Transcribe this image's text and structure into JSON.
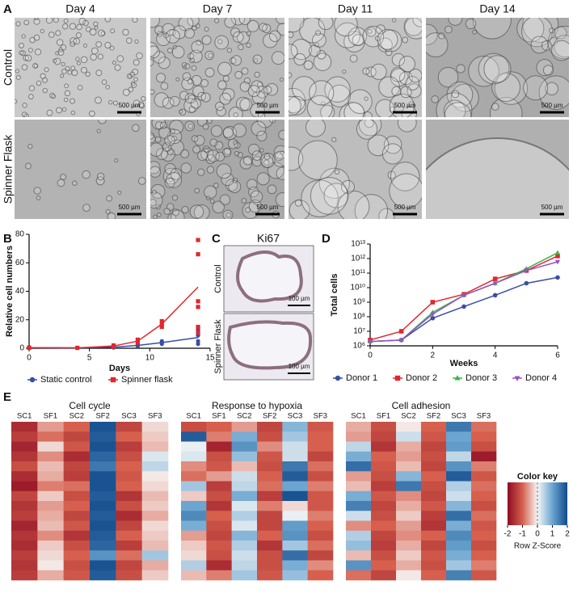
{
  "panel_labels": [
    "A",
    "B",
    "C",
    "D",
    "E"
  ],
  "panel_a": {
    "columns": [
      "Day 4",
      "Day 7",
      "Day 11",
      "Day 14"
    ],
    "rows": [
      "Control",
      "Spinner Flask"
    ],
    "scale_bar": "500 µm"
  },
  "panel_c": {
    "title": "Ki67",
    "rows": [
      "Control",
      "Spinner Flask"
    ],
    "scale_bar": "100 µm"
  },
  "chart_data": [
    {
      "type": "line",
      "xlabel": "Days",
      "ylabel": "Relative cell numbers",
      "x": [
        0,
        4,
        7,
        9,
        11,
        14
      ],
      "xlim": [
        0,
        15
      ],
      "xticks": [
        0,
        5,
        10,
        15
      ],
      "ylim": [
        0,
        80
      ],
      "yticks": [
        0,
        20,
        40,
        60,
        80
      ],
      "log_y": false,
      "series": [
        {
          "name": "Static control",
          "color": "#3a4ea6",
          "marker": "circle",
          "values": [
            0.4,
            0.2,
            0.8,
            2,
            4,
            7.5
          ],
          "points": {
            "x": [
              0,
              0,
              4,
              7,
              7,
              9,
              9,
              11,
              11,
              11,
              14,
              14,
              14,
              14
            ],
            "y": [
              0.5,
              0.3,
              0.2,
              0.5,
              1.0,
              1.5,
              2.5,
              3,
              4,
              5,
              13,
              9,
              5,
              3
            ]
          }
        },
        {
          "name": "Spinner flask",
          "color": "#e3262d",
          "marker": "square",
          "values": [
            0.4,
            0.3,
            1.6,
            5,
            17,
            43
          ],
          "points": {
            "x": [
              0,
              0,
              4,
              7,
              7,
              9,
              9,
              11,
              11,
              11,
              14,
              14,
              14,
              14,
              14,
              14
            ],
            "y": [
              0.5,
              0.3,
              0.3,
              1.2,
              2,
              4,
              6,
              15,
              17,
              19,
              76,
              66,
              33,
              29,
              15,
              11
            ]
          }
        }
      ]
    },
    {
      "type": "line",
      "xlabel": "Weeks",
      "ylabel": "Total cells",
      "x": [
        0,
        1,
        2,
        3,
        4,
        5,
        6
      ],
      "xlim": [
        0,
        6
      ],
      "xticks": [
        0,
        2,
        4,
        6
      ],
      "ylim": [
        1000000,
        10000000000000
      ],
      "log_y": true,
      "yticks": [
        {
          "value": 1000000,
          "label": "10⁶"
        },
        {
          "value": 10000000,
          "label": "10⁷"
        },
        {
          "value": 100000000,
          "label": "10⁸"
        },
        {
          "value": 1000000000,
          "label": "10⁹"
        },
        {
          "value": 10000000000,
          "label": "10¹⁰"
        },
        {
          "value": 100000000000,
          "label": "10¹¹"
        },
        {
          "value": 1000000000000,
          "label": "10¹²"
        },
        {
          "value": 10000000000000,
          "label": "10¹³"
        }
      ],
      "series": [
        {
          "name": "Donor 1",
          "color": "#3a4ea6",
          "marker": "circle",
          "values": [
            2000000,
            2500000,
            80000000,
            500000000,
            3000000000,
            20000000000,
            50000000000
          ]
        },
        {
          "name": "Donor 2",
          "color": "#e3262d",
          "marker": "square",
          "values": [
            2500000,
            10000000,
            1000000000,
            3500000000,
            40000000000,
            150000000000,
            1500000000000
          ]
        },
        {
          "name": "Donor 3",
          "color": "#3ab54a",
          "marker": "triangle",
          "values": [
            2000000,
            2500000,
            200000000,
            3000000000,
            20000000000,
            200000000000,
            2500000000000
          ]
        },
        {
          "name": "Donor 4",
          "color": "#9b4fc8",
          "marker": "triangle-down",
          "values": [
            2000000,
            2500000,
            150000000,
            3000000000,
            20000000000,
            150000000000,
            600000000000
          ]
        }
      ]
    },
    {
      "type": "heatmap",
      "title": "Cell cycle",
      "columns": [
        "SC1",
        "SF1",
        "SC2",
        "SF2",
        "SC3",
        "SF3"
      ],
      "values": [
        [
          -1.6,
          -0.6,
          -1.0,
          1.9,
          -1.3,
          -0.2
        ],
        [
          -1.4,
          -0.9,
          -1.3,
          1.8,
          -1.0,
          -0.3
        ],
        [
          -1.7,
          -0.2,
          -1.1,
          1.9,
          -1.4,
          -0.4
        ],
        [
          -1.5,
          -0.7,
          -1.6,
          1.7,
          -1.2,
          0.2
        ],
        [
          -1.2,
          -0.4,
          -1.3,
          1.5,
          -1.0,
          0.4
        ],
        [
          -1.6,
          -0.5,
          -1.4,
          1.9,
          -1.1,
          -0.1
        ],
        [
          -1.8,
          -0.8,
          -0.9,
          1.9,
          -1.0,
          -0.2
        ],
        [
          -1.3,
          -0.3,
          -1.2,
          1.8,
          -1.5,
          -0.4
        ],
        [
          -1.5,
          -0.6,
          -1.0,
          1.9,
          -1.2,
          -0.3
        ],
        [
          -1.4,
          -0.5,
          -1.3,
          1.8,
          -1.6,
          -0.5
        ],
        [
          -1.7,
          -0.4,
          -1.1,
          1.9,
          -1.3,
          -0.2
        ],
        [
          -1.5,
          -0.7,
          -1.5,
          1.8,
          -1.0,
          -0.3
        ],
        [
          -1.6,
          -0.3,
          -1.2,
          1.7,
          -1.4,
          -0.4
        ],
        [
          -1.4,
          -0.2,
          -1.0,
          1.2,
          -0.9,
          0.6
        ],
        [
          -1.5,
          -0.1,
          -1.2,
          1.9,
          -1.3,
          -0.5
        ],
        [
          -1.4,
          -0.5,
          -1.1,
          1.8,
          -1.2,
          -0.3
        ]
      ]
    },
    {
      "type": "heatmap",
      "title": "Response to hypoxia",
      "columns": [
        "SC1",
        "SF1",
        "SC2",
        "SF2",
        "SC3",
        "SF3"
      ],
      "values": [
        [
          -1.2,
          -1.0,
          -0.6,
          -1.3,
          0.8,
          -1.1
        ],
        [
          1.8,
          -0.8,
          0.9,
          -1.2,
          0.6,
          -1.0
        ],
        [
          0.1,
          -1.7,
          1.2,
          -0.7,
          0.3,
          -1.0
        ],
        [
          0.2,
          -1.2,
          0.7,
          -1.1,
          0.3,
          -1.3
        ],
        [
          -0.7,
          -1.1,
          -0.4,
          -1.2,
          1.5,
          -0.9
        ],
        [
          -0.9,
          -0.6,
          0.3,
          -1.0,
          1.8,
          -1.2
        ],
        [
          0.6,
          -1.4,
          0.4,
          -0.9,
          1.0,
          -0.8
        ],
        [
          -0.3,
          -1.2,
          0.9,
          -1.4,
          1.9,
          -1.1
        ],
        [
          1.0,
          -1.5,
          0.2,
          -0.8,
          -0.2,
          -1.1
        ],
        [
          1.3,
          -1.0,
          0.5,
          -1.3,
          0.1,
          -0.8
        ],
        [
          0.9,
          -1.2,
          0.2,
          -1.3,
          1.1,
          -1.0
        ],
        [
          -0.6,
          -1.3,
          0.8,
          -1.0,
          1.2,
          -1.2
        ],
        [
          -0.3,
          -1.1,
          0.5,
          -1.5,
          0.6,
          -0.9
        ],
        [
          -0.2,
          -1.2,
          0.3,
          -1.2,
          1.6,
          -1.3
        ],
        [
          0.5,
          -1.6,
          0.4,
          -1.2,
          0.9,
          -0.7
        ],
        [
          -0.4,
          -0.8,
          0.6,
          -1.1,
          0.7,
          -1.0
        ]
      ]
    },
    {
      "type": "heatmap",
      "title": "Cell adhesion",
      "columns": [
        "SC1",
        "SF1",
        "SC2",
        "SF2",
        "SC3",
        "SF3"
      ],
      "values": [
        [
          -0.5,
          -1.2,
          -0.1,
          -1.0,
          1.5,
          -0.9
        ],
        [
          -0.6,
          -1.3,
          0.3,
          -1.1,
          1.0,
          -1.0
        ],
        [
          0.4,
          -1.5,
          -0.5,
          -1.3,
          1.1,
          -1.2
        ],
        [
          0.9,
          -1.0,
          -0.6,
          -1.2,
          0.4,
          -1.8
        ],
        [
          1.6,
          -1.1,
          -0.4,
          -1.3,
          1.2,
          -0.8
        ],
        [
          -0.6,
          -1.2,
          0.8,
          -1.0,
          1.8,
          -1.1
        ],
        [
          -0.4,
          -1.4,
          1.5,
          -1.2,
          0.5,
          -0.9
        ],
        [
          0.9,
          -1.1,
          -0.7,
          -1.3,
          0.3,
          -1.0
        ],
        [
          1.4,
          -1.3,
          -0.5,
          -1.1,
          0.8,
          -1.2
        ],
        [
          0.3,
          -1.2,
          -0.3,
          -1.4,
          1.6,
          -0.9
        ],
        [
          -0.7,
          -1.0,
          -0.6,
          -1.5,
          0.9,
          -1.1
        ],
        [
          0.5,
          -1.3,
          -0.7,
          -1.0,
          1.3,
          -1.0
        ],
        [
          0.7,
          -1.4,
          -0.5,
          -1.3,
          1.1,
          -1.2
        ],
        [
          -0.4,
          -1.2,
          -0.3,
          -1.1,
          0.9,
          -1.0
        ],
        [
          1.2,
          -1.0,
          -0.5,
          -1.2,
          0.6,
          -0.8
        ],
        [
          -0.9,
          -1.3,
          -0.1,
          -1.0,
          1.4,
          -1.1
        ]
      ]
    }
  ],
  "color_key": {
    "title": "Color key",
    "label": "Row Z-Score",
    "range": [
      -2,
      2
    ],
    "ticks": [
      -2,
      -1,
      0,
      1,
      2
    ],
    "colormap": [
      "#8e0b22",
      "#d6604d",
      "#f7f7f7",
      "#6ba5d0",
      "#114a8b"
    ]
  }
}
